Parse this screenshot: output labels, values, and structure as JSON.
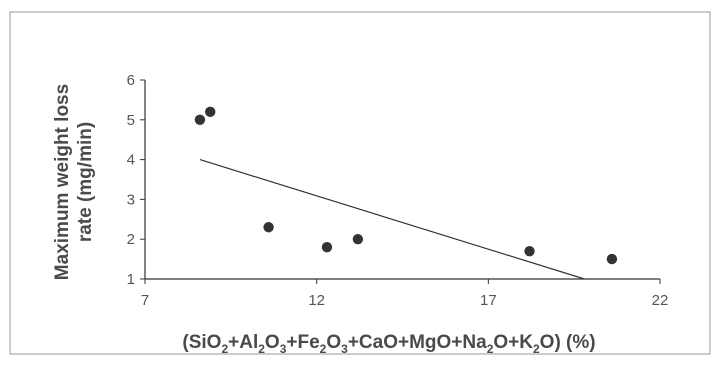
{
  "chart_data": {
    "type": "scatter",
    "title": "",
    "xlabel_parts": [
      "(SiO",
      "2",
      "+Al",
      "2",
      "O",
      "3",
      "+Fe",
      "2",
      "O",
      "3",
      "+CaO+MgO+Na",
      "2",
      "O+K",
      "2",
      "O) (%)"
    ],
    "ylabel_lines": [
      "Maximum weight loss",
      "rate (mg/min)"
    ],
    "xlim": [
      7,
      22
    ],
    "ylim": [
      1,
      6
    ],
    "xticks": [
      7,
      12,
      17,
      22
    ],
    "yticks": [
      1,
      2,
      3,
      4,
      5,
      6
    ],
    "grid": false,
    "legend": "none",
    "points": [
      {
        "x": 8.6,
        "y": 5.0
      },
      {
        "x": 8.9,
        "y": 5.2
      },
      {
        "x": 10.6,
        "y": 2.3
      },
      {
        "x": 12.3,
        "y": 1.8
      },
      {
        "x": 13.2,
        "y": 2.0
      },
      {
        "x": 18.2,
        "y": 1.7
      },
      {
        "x": 20.6,
        "y": 1.5
      }
    ],
    "trendline": {
      "x": [
        8.6,
        19.8
      ],
      "y": [
        4.0,
        1.0
      ]
    },
    "colors": {
      "marker": "#333333",
      "line": "#333333",
      "text": "#4a4a4a"
    }
  }
}
